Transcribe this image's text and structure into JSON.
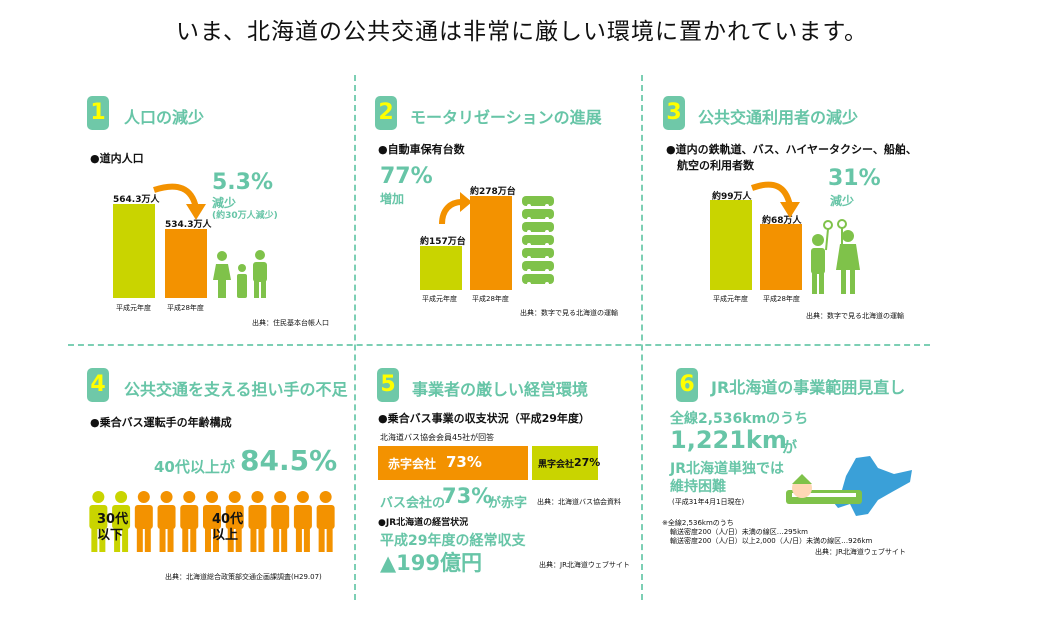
{
  "headline": "いま、北海道の公共交通は非常に厳しい環境に置かれています。",
  "colors": {
    "accent": "#67c5a7",
    "lime": "#c9d400",
    "orange": "#f39200",
    "badge_number": "#ffff00"
  },
  "panels": {
    "p1": {
      "number": "1",
      "title": "人口の減少",
      "subtitle": "●道内人口",
      "bar1_value": "564.3万人",
      "bar2_value": "534.3万人",
      "bar1_year": "平成元年度",
      "bar2_year": "平成28年度",
      "change_pct": "5.3%",
      "change_word": "減少",
      "change_note": "(約30万人減少)",
      "source": "出典：住民基本台帳人口",
      "icon": "family-icon"
    },
    "p2": {
      "number": "2",
      "title": "モータリゼーションの進展",
      "subtitle": "●自動車保有台数",
      "change_pct": "77%",
      "change_word": "増加",
      "bar1_value": "約157万台",
      "bar2_value": "約278万台",
      "bar1_year": "平成元年度",
      "bar2_year": "平成28年度",
      "source": "出典：数字で見る北海道の運輸",
      "icon": "cars-icon"
    },
    "p3": {
      "number": "3",
      "title": "公共交通利用者の減少",
      "subtitle_line1": "●道内の鉄軌道、バス、ハイヤータクシー、船舶、",
      "subtitle_line2": "航空の利用者数",
      "bar1_value": "約99万人",
      "bar2_value": "約68万人",
      "bar1_year": "平成元年度",
      "bar2_year": "平成28年度",
      "change_pct": "31%",
      "change_word": "減少",
      "source": "出典：数字で見る北海道の運輸",
      "icon": "passengers-icon"
    },
    "p4": {
      "number": "4",
      "title": "公共交通を支える担い手の不足",
      "subtitle": "●乗合バス運転手の年齢構成",
      "stat_prefix": "40代以上が",
      "stat_value": "84.5%",
      "label_young_1": "30代",
      "label_young_2": "以下",
      "label_old_1": "40代",
      "label_old_2": "以上",
      "young_count": 2,
      "old_count": 9,
      "source": "出典：北海道総合政策部交通企画課調査(H29.07)",
      "icon": "drivers-icon"
    },
    "p5": {
      "number": "5",
      "title": "事業者の厳しい経営環境",
      "subtitle": "●乗合バス事業の収支状況（平成29年度）",
      "note": "北海道バス協会会員45社が回答",
      "deficit_label": "赤字会社",
      "deficit_pct": "73%",
      "surplus_label": "黒字会社",
      "surplus_pct": "27%",
      "deficit_share": 0.73,
      "summary_prefix": "バス会社の",
      "summary_pct": "73%",
      "summary_suffix": "が赤字",
      "source1": "出典：北海道バス協会資料",
      "jr_subtitle": "●JR北海道の経営状況",
      "jr_line1": "平成29年度の経常収支",
      "jr_line2": "▲199億円",
      "source2": "出典：JR北海道ウェブサイト"
    },
    "p6": {
      "number": "6",
      "title": "JR北海道の事業範囲見直し",
      "line1": "全線2,536kmのうち",
      "line2_big": "1,221km",
      "line2_suffix": "が",
      "line3": "JR北海道単独では",
      "line4": "維持困難",
      "line5": "(平成31年4月1日現在)",
      "note1": "※全線2,536kmのうち",
      "note2": "輸送密度200（人/日）未満の線区…295km",
      "note3": "輸送密度200（人/日）以上2,000（人/日）未満の線区…926km",
      "source": "出典：JR北海道ウェブサイト",
      "icon": "hokkaido-train-icon"
    }
  }
}
